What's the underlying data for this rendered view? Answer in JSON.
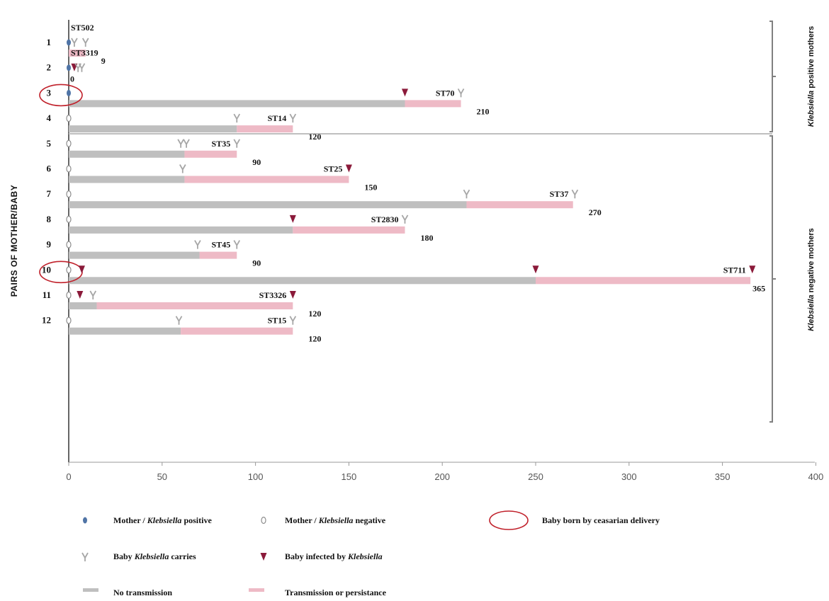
{
  "chart_data": {
    "type": "bar",
    "orientation": "horizontal",
    "ylabel": "PAIRS OF MOTHER/BABY",
    "xlabel": "",
    "xlim": [
      0,
      400
    ],
    "xticks": [
      "0",
      "50",
      "100",
      "150",
      "200",
      "250",
      "300",
      "350",
      "400"
    ],
    "xtick_values": [
      0,
      50,
      100,
      150,
      200,
      250,
      300,
      350,
      400
    ],
    "grid": false,
    "colors": {
      "no_transmission": "#bfbfbf",
      "transmission": "#eebac6",
      "mother_positive": "#4f74a6",
      "mother_negative": "#ffffff",
      "baby_carrier": "#a6a6a6",
      "baby_infected": "#8b1a3a",
      "caesarean_circle": "#c0202a",
      "axis": "#333333",
      "bracket": "#808080"
    },
    "groups": [
      {
        "label_italic": "Klebsiella",
        "label_rest": " positive mothers",
        "rows": [
          "1",
          "3"
        ]
      },
      {
        "label_italic": "Klebsiella",
        "label_rest": " negative mothers",
        "rows": [
          "4",
          "12"
        ]
      }
    ],
    "pairs": [
      {
        "pair": "1",
        "mother": "positive",
        "caesarean": false,
        "no_transmission": [
          0,
          0
        ],
        "transmission": [
          0,
          9
        ],
        "duration_label": "9",
        "st": "ST502",
        "st_pos": "top",
        "markers": [
          {
            "x": 3,
            "type": "carrier"
          },
          {
            "x": 9,
            "type": "carrier"
          }
        ]
      },
      {
        "pair": "2",
        "mother": "positive",
        "caesarean": false,
        "no_transmission": [
          0,
          0
        ],
        "transmission": [
          0,
          0
        ],
        "duration_label": "0",
        "st": "ST3319",
        "st_pos": "top",
        "markers": [
          {
            "x": 3,
            "type": "infected"
          },
          {
            "x": 5,
            "type": "carrier"
          },
          {
            "x": 7,
            "type": "carrier"
          }
        ]
      },
      {
        "pair": "3",
        "mother": "positive",
        "caesarean": true,
        "no_transmission": [
          0,
          180
        ],
        "transmission": [
          180,
          210
        ],
        "duration_label": "210",
        "st": "ST70",
        "st_pos": "left",
        "markers": [
          {
            "x": 180,
            "type": "infected"
          },
          {
            "x": 210,
            "type": "carrier"
          }
        ]
      },
      {
        "pair": "4",
        "mother": "negative",
        "caesarean": false,
        "no_transmission": [
          0,
          90
        ],
        "transmission": [
          90,
          120
        ],
        "duration_label": "120",
        "st": "ST14",
        "st_pos": "left",
        "markers": [
          {
            "x": 90,
            "type": "carrier"
          },
          {
            "x": 120,
            "type": "carrier"
          }
        ]
      },
      {
        "pair": "5",
        "mother": "negative",
        "caesarean": false,
        "no_transmission": [
          0,
          62
        ],
        "transmission": [
          62,
          90
        ],
        "duration_label": "90",
        "st": "ST35",
        "st_pos": "left",
        "markers": [
          {
            "x": 60,
            "type": "carrier"
          },
          {
            "x": 63,
            "type": "carrier"
          },
          {
            "x": 90,
            "type": "carrier"
          }
        ]
      },
      {
        "pair": "6",
        "mother": "negative",
        "caesarean": false,
        "no_transmission": [
          0,
          62
        ],
        "transmission": [
          62,
          150
        ],
        "duration_label": "150",
        "st": "ST25",
        "st_pos": "left",
        "markers": [
          {
            "x": 61,
            "type": "carrier"
          },
          {
            "x": 150,
            "type": "infected"
          }
        ]
      },
      {
        "pair": "7",
        "mother": "negative",
        "caesarean": false,
        "no_transmission": [
          0,
          213
        ],
        "transmission": [
          213,
          270
        ],
        "duration_label": "270",
        "st": "ST37",
        "st_pos": "left",
        "markers": [
          {
            "x": 213,
            "type": "carrier"
          },
          {
            "x": 271,
            "type": "carrier"
          }
        ]
      },
      {
        "pair": "8",
        "mother": "negative",
        "caesarean": false,
        "no_transmission": [
          0,
          120
        ],
        "transmission": [
          120,
          180
        ],
        "duration_label": "180",
        "st": "ST2830",
        "st_pos": "left",
        "markers": [
          {
            "x": 120,
            "type": "infected"
          },
          {
            "x": 180,
            "type": "carrier"
          }
        ]
      },
      {
        "pair": "9",
        "mother": "negative",
        "caesarean": false,
        "no_transmission": [
          0,
          70
        ],
        "transmission": [
          70,
          90
        ],
        "duration_label": "90",
        "st": "ST45",
        "st_pos": "left",
        "markers": [
          {
            "x": 69,
            "type": "carrier"
          },
          {
            "x": 90,
            "type": "carrier"
          }
        ]
      },
      {
        "pair": "10",
        "mother": "negative",
        "caesarean": true,
        "no_transmission": [
          0,
          250
        ],
        "transmission": [
          250,
          365
        ],
        "duration_label": "365",
        "st": "ST711",
        "st_pos": "left",
        "markers": [
          {
            "x": 7,
            "type": "infected"
          },
          {
            "x": 250,
            "type": "infected"
          },
          {
            "x": 366,
            "type": "infected"
          }
        ]
      },
      {
        "pair": "11",
        "mother": "negative",
        "caesarean": false,
        "no_transmission": [
          0,
          15
        ],
        "transmission": [
          15,
          120
        ],
        "duration_label": "120",
        "st": "ST3326",
        "st_pos": "left",
        "markers": [
          {
            "x": 6,
            "type": "infected"
          },
          {
            "x": 13,
            "type": "carrier"
          },
          {
            "x": 120,
            "type": "infected"
          }
        ]
      },
      {
        "pair": "12",
        "mother": "negative",
        "caesarean": false,
        "no_transmission": [
          0,
          60
        ],
        "transmission": [
          60,
          120
        ],
        "duration_label": "120",
        "st": "ST15",
        "st_pos": "left",
        "markers": [
          {
            "x": 59,
            "type": "carrier"
          },
          {
            "x": 120,
            "type": "carrier"
          }
        ]
      }
    ],
    "legend": {
      "placement": "bottom",
      "items": [
        {
          "key": "mother_positive",
          "parts": [
            {
              "t": "Mother / ",
              "i": false
            },
            {
              "t": "Klebsiella",
              "i": true
            },
            {
              "t": " positive",
              "i": false
            }
          ]
        },
        {
          "key": "mother_negative",
          "parts": [
            {
              "t": "Mother / ",
              "i": false
            },
            {
              "t": "Klebsiella",
              "i": true
            },
            {
              "t": " negative",
              "i": false
            }
          ]
        },
        {
          "key": "caesarean",
          "parts": [
            {
              "t": "Baby born by ceasarian delivery",
              "i": false
            }
          ]
        },
        {
          "key": "baby_carrier",
          "parts": [
            {
              "t": "Baby ",
              "i": false
            },
            {
              "t": "Klebsiella",
              "i": true
            },
            {
              "t": " carries",
              "i": false
            }
          ]
        },
        {
          "key": "baby_infected",
          "parts": [
            {
              "t": "Baby infected by ",
              "i": false
            },
            {
              "t": "Klebsiella",
              "i": true
            }
          ]
        },
        {
          "key": "no_transmission",
          "parts": [
            {
              "t": "No transmission",
              "i": false
            }
          ]
        },
        {
          "key": "transmission",
          "parts": [
            {
              "t": "Transmission or persistance",
              "i": false
            }
          ]
        }
      ]
    }
  }
}
